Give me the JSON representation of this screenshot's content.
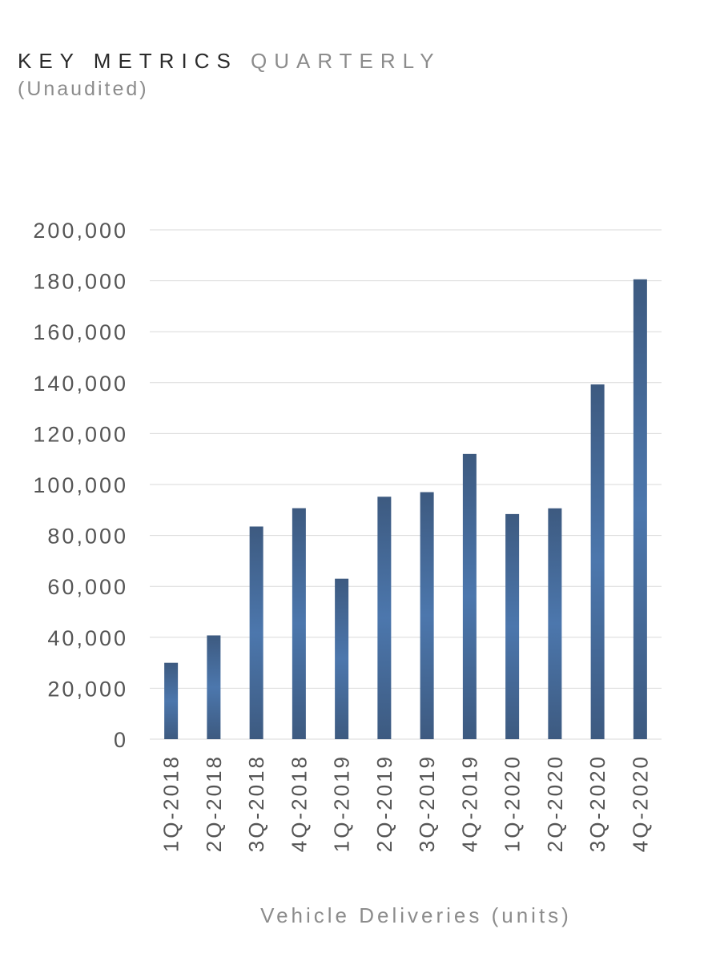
{
  "header": {
    "title_main": "KEY METRICS",
    "title_sub": "QUARTERLY",
    "subtitle": "(Unaudited)"
  },
  "chart_data": {
    "type": "bar",
    "categories": [
      "1Q-2018",
      "2Q-2018",
      "3Q-2018",
      "4Q-2018",
      "1Q-2019",
      "2Q-2019",
      "3Q-2019",
      "4Q-2019",
      "1Q-2020",
      "2Q-2020",
      "3Q-2020",
      "4Q-2020"
    ],
    "values": [
      29980,
      40740,
      83500,
      90700,
      63000,
      95200,
      97000,
      112000,
      88400,
      90650,
      139300,
      180570
    ],
    "xlabel": "Vehicle Deliveries (units)",
    "ylabel": "",
    "ylim": [
      0,
      200000
    ],
    "yticks": [
      0,
      20000,
      40000,
      60000,
      80000,
      100000,
      120000,
      140000,
      160000,
      180000,
      200000
    ],
    "ytick_labels": [
      "0",
      "20,000",
      "40,000",
      "60,000",
      "80,000",
      "100,000",
      "120,000",
      "140,000",
      "160,000",
      "180,000",
      "200,000"
    ],
    "grid": true,
    "legend": "none",
    "colors": {
      "bar_edge": "#3d5a80",
      "bar_center": "#4c77ad",
      "grid": "#d9d9d9",
      "tick_text": "#555555"
    }
  }
}
